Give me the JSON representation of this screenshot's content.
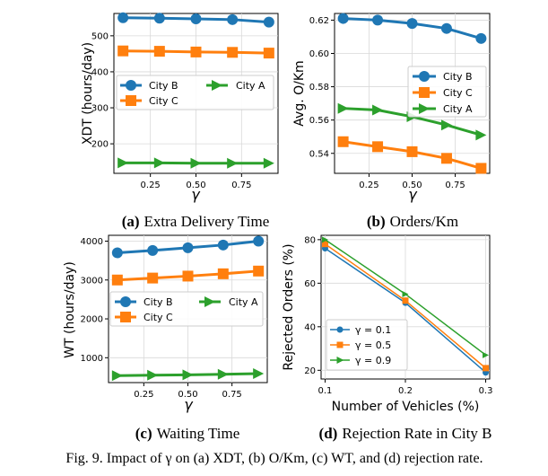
{
  "colors": {
    "blue": "#1f77b4",
    "orange": "#ff7f0e",
    "green": "#2ca02c",
    "grid": "#d9d9d9"
  },
  "chart_data": [
    {
      "type": "line",
      "caption": {
        "label": "(a)",
        "text": "Extra Delivery Time"
      },
      "xlabel": "γ",
      "ylabel": "XDT (hours/day)",
      "xlim": [
        0.05,
        0.95
      ],
      "ylim": [
        118,
        562
      ],
      "xticks": [
        "0.25",
        "0.50",
        "0.75"
      ],
      "yticks": [
        "200",
        "300",
        "400",
        "500"
      ],
      "grid": true,
      "legend_position": "center",
      "x": [
        0.1,
        0.3,
        0.5,
        0.7,
        0.9
      ],
      "series": [
        {
          "name": "City B",
          "marker": "circle",
          "values": [
            550,
            549,
            547,
            545,
            538
          ]
        },
        {
          "name": "City C",
          "marker": "square",
          "values": [
            458,
            457,
            455,
            454,
            452
          ]
        },
        {
          "name": "City A",
          "marker": "triangle",
          "values": [
            147,
            147,
            146,
            146,
            146
          ]
        }
      ],
      "legend_order": [
        "City B",
        "City A",
        "City C"
      ]
    },
    {
      "type": "line",
      "caption": {
        "label": "(b)",
        "text": "Orders/Km"
      },
      "xlabel": "γ",
      "ylabel": "Avg. O/Km",
      "xlim": [
        0.05,
        0.95
      ],
      "ylim": [
        0.528,
        0.624
      ],
      "xticks": [
        "0.25",
        "0.50",
        "0.75"
      ],
      "yticks": [
        "0.54",
        "0.56",
        "0.58",
        "0.60",
        "0.62"
      ],
      "grid": true,
      "legend_position": "center-right",
      "x": [
        0.1,
        0.3,
        0.5,
        0.7,
        0.9
      ],
      "series": [
        {
          "name": "City B",
          "marker": "circle",
          "values": [
            0.621,
            0.62,
            0.618,
            0.615,
            0.609
          ]
        },
        {
          "name": "City C",
          "marker": "square",
          "values": [
            0.547,
            0.544,
            0.541,
            0.537,
            0.531
          ]
        },
        {
          "name": "City A",
          "marker": "triangle",
          "values": [
            0.567,
            0.566,
            0.562,
            0.557,
            0.551
          ]
        }
      ],
      "legend_order": [
        "City B",
        "City C",
        "City A"
      ]
    },
    {
      "type": "line",
      "caption": {
        "label": "(c)",
        "text": "Waiting Time"
      },
      "xlabel": "γ",
      "ylabel": "WT (hours/day)",
      "xlim": [
        0.05,
        0.95
      ],
      "ylim": [
        360,
        4150
      ],
      "xticks": [
        "0.25",
        "0.50",
        "0.75"
      ],
      "yticks": [
        "1000",
        "2000",
        "3000",
        "4000"
      ],
      "grid": true,
      "legend_position": "center",
      "x": [
        0.1,
        0.3,
        0.5,
        0.7,
        0.9
      ],
      "series": [
        {
          "name": "City B",
          "marker": "circle",
          "values": [
            3700,
            3760,
            3830,
            3900,
            4000
          ]
        },
        {
          "name": "City C",
          "marker": "square",
          "values": [
            3000,
            3050,
            3100,
            3160,
            3230
          ]
        },
        {
          "name": "City A",
          "marker": "triangle",
          "values": [
            540,
            550,
            560,
            575,
            590
          ]
        }
      ],
      "legend_order": [
        "City B",
        "City A",
        "City C"
      ]
    },
    {
      "type": "line",
      "caption": {
        "label": "(d)",
        "text": "Rejection Rate in City B"
      },
      "xlabel": "Number of Vehicles (%)",
      "ylabel": "Rejected Orders (%)",
      "xlim": [
        0.095,
        0.305
      ],
      "ylim": [
        16,
        82
      ],
      "xticks": [
        "0.1",
        "0.2",
        "0.3"
      ],
      "yticks": [
        "20",
        "40",
        "60",
        "80"
      ],
      "grid": true,
      "legend_position": "lower-left",
      "x": [
        0.1,
        0.2,
        0.3
      ],
      "series": [
        {
          "name": "γ = 0.1",
          "marker": "circle",
          "values": [
            76,
            51,
            19
          ]
        },
        {
          "name": "γ = 0.5",
          "marker": "square",
          "values": [
            78,
            52,
            21
          ]
        },
        {
          "name": "γ = 0.9",
          "marker": "triangle",
          "values": [
            80,
            55,
            27
          ]
        }
      ],
      "legend_order": [
        "γ = 0.1",
        "γ = 0.5",
        "γ = 0.9"
      ]
    }
  ],
  "figure_caption": "Fig. 9.  Impact of γ on (a) XDT, (b) O/Km, (c) WT, and (d) rejection rate."
}
